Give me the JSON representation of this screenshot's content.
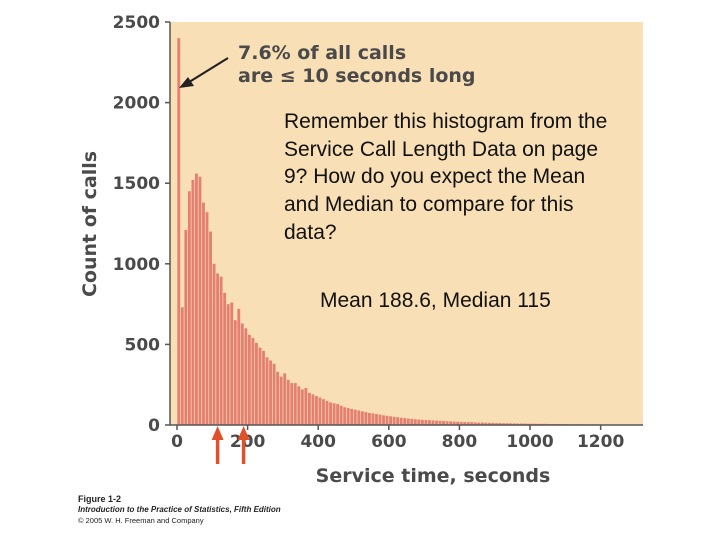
{
  "chart_data": {
    "type": "bar",
    "xlabel": "Service time, seconds",
    "ylabel": "Count of calls",
    "xlim": [
      0,
      1320
    ],
    "ylim": [
      0,
      2500
    ],
    "x_ticks": [
      0,
      200,
      400,
      600,
      800,
      1000,
      1200
    ],
    "y_ticks": [
      0,
      500,
      1000,
      1500,
      2000,
      2500
    ],
    "bin_width": 10,
    "bin_starts": [
      0,
      10,
      20,
      30,
      40,
      50,
      60,
      70,
      80,
      90,
      100,
      110,
      120,
      130,
      140,
      150,
      160,
      170,
      180,
      190,
      200,
      210,
      220,
      230,
      240,
      250,
      260,
      270,
      280,
      290,
      300,
      310,
      320,
      330,
      340,
      350,
      360,
      370,
      380,
      390,
      400,
      410,
      420,
      430,
      440,
      450,
      460,
      470,
      480,
      490,
      500,
      510,
      520,
      530,
      540,
      550,
      560,
      570,
      580,
      590,
      600,
      610,
      620,
      630,
      640,
      650,
      660,
      670,
      680,
      690,
      700,
      710,
      720,
      730,
      740,
      750,
      760,
      770,
      780,
      790,
      800,
      810,
      820,
      830,
      840,
      850,
      860,
      870,
      880,
      890,
      900,
      910,
      920,
      930,
      940,
      950,
      960,
      970,
      980,
      990,
      1000,
      1010,
      1020,
      1030,
      1040,
      1050,
      1060,
      1070,
      1080,
      1090,
      1100,
      1110,
      1120,
      1130,
      1140,
      1150,
      1160,
      1170,
      1180,
      1190,
      1200,
      1210,
      1220,
      1230,
      1240,
      1250,
      1260,
      1270,
      1280,
      1290,
      1300
    ],
    "values": [
      2400,
      730,
      1210,
      1450,
      1520,
      1560,
      1540,
      1380,
      1320,
      1200,
      1000,
      940,
      920,
      820,
      750,
      760,
      650,
      720,
      630,
      600,
      560,
      540,
      510,
      480,
      460,
      420,
      400,
      380,
      330,
      300,
      320,
      280,
      260,
      260,
      240,
      220,
      230,
      200,
      190,
      180,
      170,
      160,
      150,
      140,
      135,
      130,
      120,
      110,
      105,
      100,
      95,
      90,
      85,
      80,
      75,
      72,
      68,
      64,
      60,
      57,
      54,
      51,
      48,
      45,
      43,
      40,
      38,
      36,
      34,
      32,
      31,
      30,
      28,
      27,
      26,
      25,
      23,
      22,
      21,
      20,
      19,
      18,
      18,
      17,
      16,
      15,
      15,
      14,
      13,
      13,
      12,
      12,
      11,
      11,
      10,
      10,
      9,
      9,
      9,
      8,
      8,
      8,
      7,
      7,
      7,
      6,
      6,
      6,
      6,
      5,
      5,
      5,
      5,
      5,
      4,
      4,
      4,
      4,
      4,
      3,
      3,
      3,
      3,
      3,
      3,
      3,
      2,
      2,
      2,
      2,
      2
    ],
    "annotation": [
      "7.6% of all calls",
      "are ≤ 10 seconds long"
    ],
    "bar_color": "#e47f72",
    "plot_background": "#f8dfb5",
    "marker_color": "#e0512b",
    "markers_x": [
      115,
      188.6
    ]
  },
  "text": {
    "question": "Remember this histogram from the Service Call Length Data on page 9?  How do you expect the Mean and Median to compare for this data?",
    "answer": "Mean 188.6, Median 115"
  },
  "caption": {
    "figure": "Figure 1-2",
    "book": "Introduction to the Practice of Statistics, Fifth Edition",
    "copyright": "© 2005 W. H. Freeman and Company"
  }
}
